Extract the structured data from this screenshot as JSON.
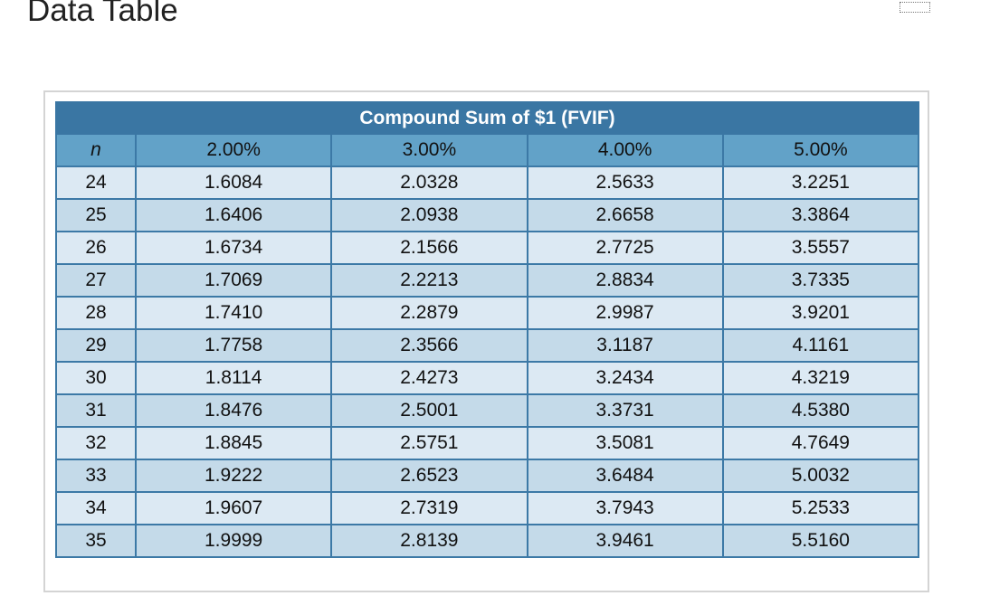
{
  "header": {
    "title": "Data Table"
  },
  "table": {
    "caption": "Compound Sum of $1 (FVIF)",
    "columns": [
      "n",
      "2.00%",
      "3.00%",
      "4.00%",
      "5.00%"
    ],
    "rows": [
      [
        "24",
        "1.6084",
        "2.0328",
        "2.5633",
        "3.2251"
      ],
      [
        "25",
        "1.6406",
        "2.0938",
        "2.6658",
        "3.3864"
      ],
      [
        "26",
        "1.6734",
        "2.1566",
        "2.7725",
        "3.5557"
      ],
      [
        "27",
        "1.7069",
        "2.2213",
        "2.8834",
        "3.7335"
      ],
      [
        "28",
        "1.7410",
        "2.2879",
        "2.9987",
        "3.9201"
      ],
      [
        "29",
        "1.7758",
        "2.3566",
        "3.1187",
        "4.1161"
      ],
      [
        "30",
        "1.8114",
        "2.4273",
        "3.2434",
        "4.3219"
      ],
      [
        "31",
        "1.8476",
        "2.5001",
        "3.3731",
        "4.5380"
      ],
      [
        "32",
        "1.8845",
        "2.5751",
        "3.5081",
        "4.7649"
      ],
      [
        "33",
        "1.9222",
        "2.6523",
        "3.6484",
        "5.0032"
      ],
      [
        "34",
        "1.9607",
        "2.7319",
        "3.7943",
        "5.2533"
      ],
      [
        "35",
        "1.9999",
        "2.8139",
        "3.9461",
        "5.5160"
      ]
    ]
  }
}
